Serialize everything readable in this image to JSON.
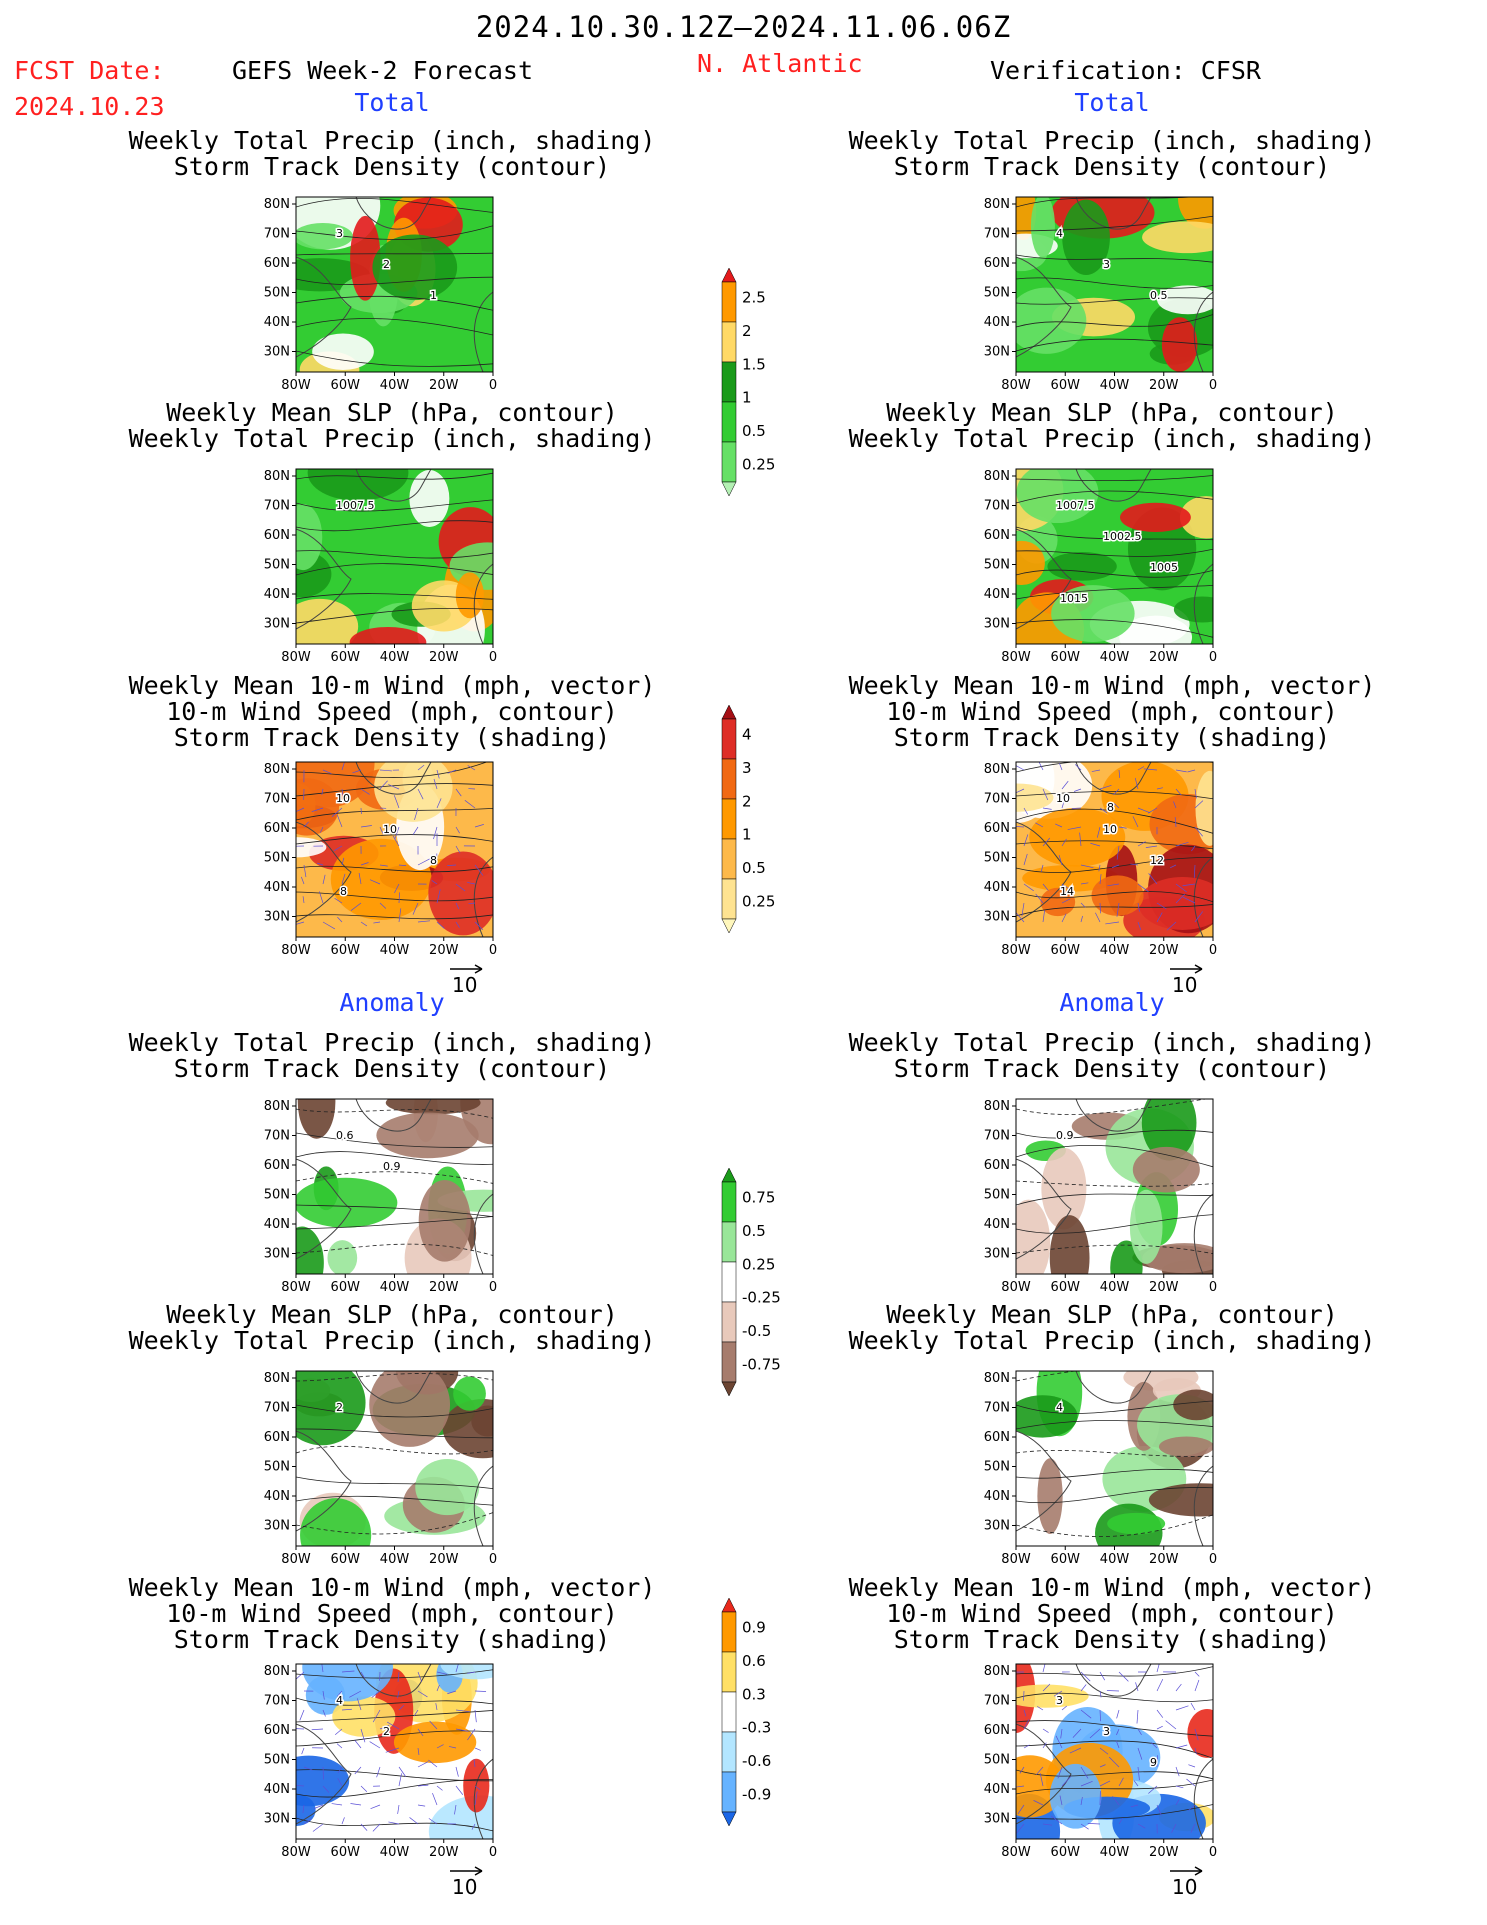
{
  "header": {
    "date_range": "2024.10.30.12Z–2024.11.06.06Z",
    "fcst_label": "FCST Date:",
    "fcst_date": "2024.10.23",
    "model": "GEFS Week-2 Forecast",
    "region": "N. Atlantic",
    "verification": "Verification: CFSR"
  },
  "sections": {
    "total": "Total",
    "anomaly": "Anomaly"
  },
  "titles": {
    "precip_storm": [
      "Weekly Total Precip (inch, shading)",
      "Storm Track Density (contour)"
    ],
    "slp_precip": [
      "Weekly Mean SLP (hPa, contour)",
      "Weekly Total Precip (inch, shading)"
    ],
    "wind_storm": [
      "Weekly Mean 10-m Wind (mph, vector)",
      "10-m Wind Speed (mph, contour)",
      "Storm Track Density (shading)"
    ]
  },
  "axes": {
    "lat_ticks": [
      "80N",
      "70N",
      "60N",
      "50N",
      "40N",
      "30N"
    ],
    "lon_ticks": [
      "80W",
      "60W",
      "40W",
      "20W",
      "0"
    ]
  },
  "vector_ref": "10",
  "colorbars": {
    "precip_total": {
      "labels": [
        "2.5",
        "2",
        "1.5",
        "1",
        "0.5",
        "0.25"
      ],
      "colors": [
        "#e31a1c",
        "#ff9900",
        "#ffd966",
        "#1a9a1a",
        "#33cc33",
        "#66e066",
        "#b3f0b3"
      ]
    },
    "storm_total": {
      "labels": [
        "4",
        "3",
        "2",
        "1",
        "0.5",
        "0.25"
      ],
      "colors": [
        "#a50f15",
        "#de2d26",
        "#f16913",
        "#ff9900",
        "#fdb94a",
        "#fee391",
        "#fff7bc"
      ]
    },
    "precip_anom": {
      "labels": [
        "0.75",
        "0.5",
        "0.25",
        "-0.25",
        "-0.5",
        "-0.75"
      ],
      "colors": [
        "#1a9a1a",
        "#33cc33",
        "#99e699",
        "#ffffff",
        "#e8c9bb",
        "#a67c6d",
        "#6b4432"
      ]
    },
    "storm_anom": {
      "labels": [
        "0.9",
        "0.6",
        "0.3",
        "-0.3",
        "-0.6",
        "-0.9"
      ],
      "colors": [
        "#e8291c",
        "#ff9900",
        "#ffe066",
        "#ffffff",
        "#b3e6ff",
        "#66b3ff",
        "#1a66e6"
      ]
    }
  },
  "panels": [
    {
      "id": "p1",
      "contour_labels": [
        "3",
        "2",
        "1"
      ]
    },
    {
      "id": "p2",
      "contour_labels": [
        "4",
        "3",
        "0.5"
      ]
    },
    {
      "id": "p3",
      "contour_labels": [
        "1007.5"
      ]
    },
    {
      "id": "p4",
      "contour_labels": [
        "1007.5",
        "1002.5",
        "1005",
        "1015"
      ]
    },
    {
      "id": "p5",
      "contour_labels": [
        "10",
        "10",
        "8",
        "8"
      ]
    },
    {
      "id": "p6",
      "contour_labels": [
        "10",
        "10",
        "12",
        "14",
        "8"
      ]
    },
    {
      "id": "p7",
      "contour_labels": [
        "0.6",
        "0.9"
      ]
    },
    {
      "id": "p8",
      "contour_labels": [
        "0.9"
      ]
    },
    {
      "id": "p9",
      "contour_labels": [
        "2"
      ]
    },
    {
      "id": "p10",
      "contour_labels": [
        "4"
      ]
    },
    {
      "id": "p11",
      "contour_labels": [
        "4",
        "2"
      ]
    },
    {
      "id": "p12",
      "contour_labels": [
        "3",
        "3",
        "9"
      ]
    }
  ]
}
